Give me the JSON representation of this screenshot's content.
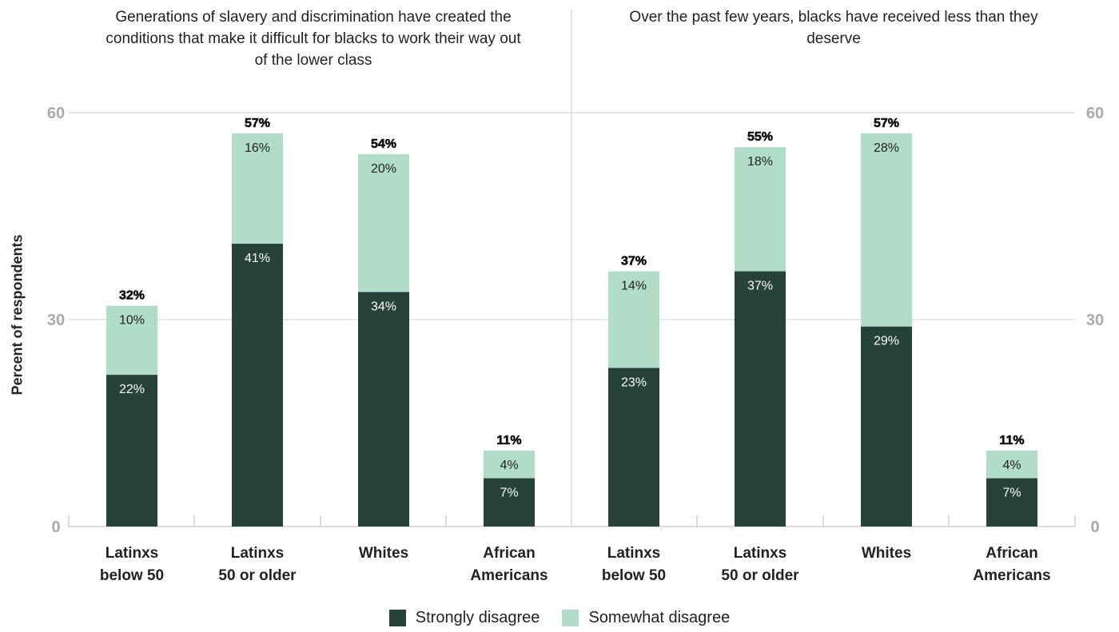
{
  "chart_data": {
    "type": "bar",
    "stacked": true,
    "ylabel": "Percent of respondents",
    "ylim": [
      0,
      60
    ],
    "yticks": [
      "0",
      "30",
      "60"
    ],
    "grid": true,
    "legend_position": "bottom-center",
    "colors": {
      "strongly": "#26423a",
      "somewhat": "#b0dcc8",
      "axis": "#bbbbbb",
      "tick_text": "#aaaaaa"
    },
    "panels": [
      {
        "title": "Generations of slavery and discrimination have created the conditions that make it difficult for blacks to work their way out of the lower class",
        "categories": [
          [
            "Latinxs",
            "below 50"
          ],
          [
            "Latinxs",
            "50 or older"
          ],
          [
            "Whites"
          ],
          [
            "African",
            "Americans"
          ]
        ],
        "series": [
          {
            "name": "Strongly disagree",
            "values": [
              22,
              41,
              34,
              7
            ]
          },
          {
            "name": "Somewhat disagree",
            "values": [
              10,
              16,
              20,
              4
            ]
          }
        ],
        "totals": [
          32,
          57,
          54,
          11
        ]
      },
      {
        "title": "Over the past few years, blacks have received less than they deserve",
        "categories": [
          [
            "Latinxs",
            "below 50"
          ],
          [
            "Latinxs",
            "50 or older"
          ],
          [
            "Whites"
          ],
          [
            "African",
            "Americans"
          ]
        ],
        "series": [
          {
            "name": "Strongly disagree",
            "values": [
              23,
              37,
              29,
              7
            ]
          },
          {
            "name": "Somewhat disagree",
            "values": [
              14,
              18,
              28,
              4
            ]
          }
        ],
        "totals": [
          37,
          55,
          57,
          11
        ]
      }
    ],
    "legend": [
      "Strongly disagree",
      "Somewhat disagree"
    ]
  }
}
